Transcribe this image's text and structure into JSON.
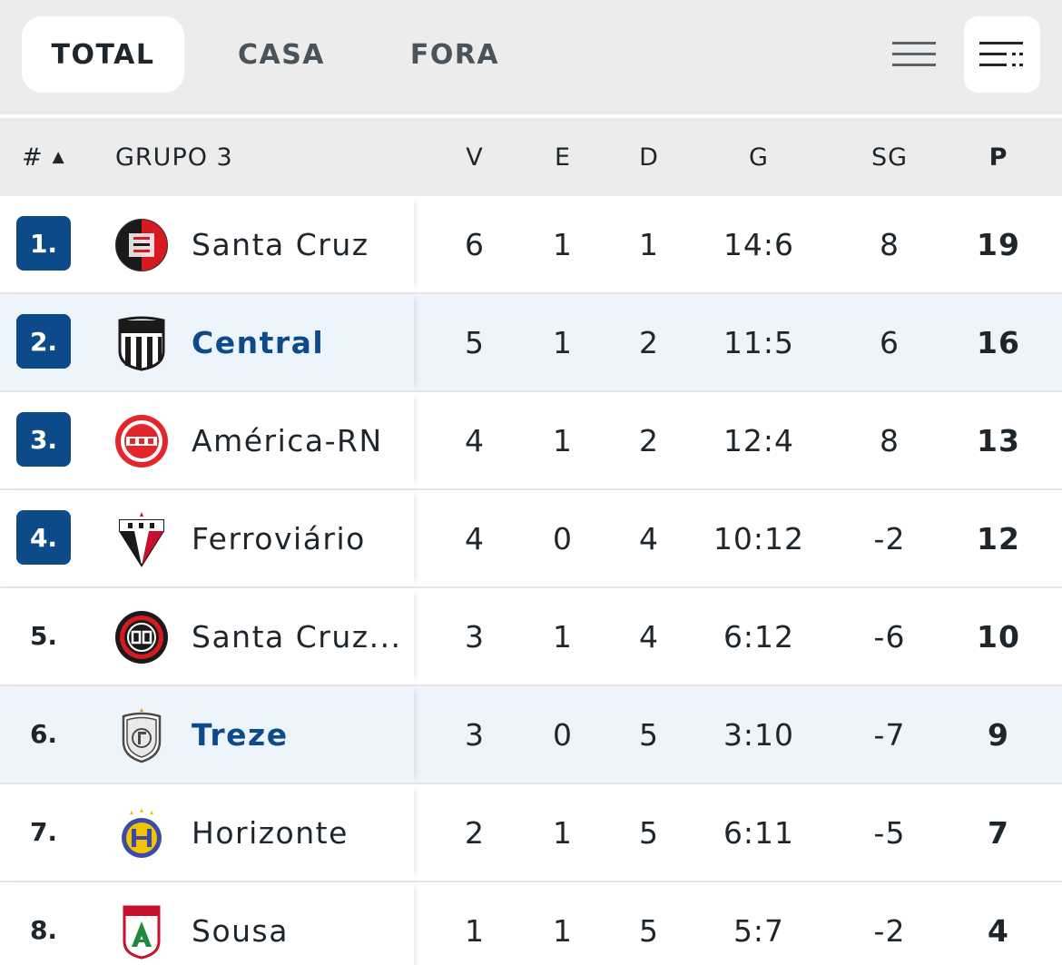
{
  "tabs": {
    "total": "TOTAL",
    "casa": "CASA",
    "fora": "FORA"
  },
  "view_icons": {
    "compact": "compact-list-icon",
    "full": "detailed-list-icon"
  },
  "colors": {
    "badge": "#0d4a8a",
    "highlight_row": "#edf4fc",
    "link_team": "#0d4a8a"
  },
  "header": {
    "num": "#",
    "sort_indicator": "▲",
    "group": "GRUPO 3",
    "v": "V",
    "e": "E",
    "d": "D",
    "g": "G",
    "sg": "SG",
    "p": "P"
  },
  "rows": [
    {
      "pos": "1.",
      "team": "Santa Cruz",
      "v": "6",
      "e": "1",
      "d": "1",
      "g": "14:6",
      "sg": "8",
      "p": "19"
    },
    {
      "pos": "2.",
      "team": "Central",
      "v": "5",
      "e": "1",
      "d": "2",
      "g": "11:5",
      "sg": "6",
      "p": "16"
    },
    {
      "pos": "3.",
      "team": "América-RN",
      "v": "4",
      "e": "1",
      "d": "2",
      "g": "12:4",
      "sg": "8",
      "p": "13"
    },
    {
      "pos": "4.",
      "team": "Ferroviário",
      "v": "4",
      "e": "0",
      "d": "4",
      "g": "10:12",
      "sg": "-2",
      "p": "12"
    },
    {
      "pos": "5.",
      "team": "Santa Cruz...",
      "v": "3",
      "e": "1",
      "d": "4",
      "g": "6:12",
      "sg": "-6",
      "p": "10"
    },
    {
      "pos": "6.",
      "team": "Treze",
      "v": "3",
      "e": "0",
      "d": "5",
      "g": "3:10",
      "sg": "-7",
      "p": "9"
    },
    {
      "pos": "7.",
      "team": "Horizonte",
      "v": "2",
      "e": "1",
      "d": "5",
      "g": "6:11",
      "sg": "-5",
      "p": "7"
    },
    {
      "pos": "8.",
      "team": "Sousa",
      "v": "1",
      "e": "1",
      "d": "5",
      "g": "5:7",
      "sg": "-2",
      "p": "4"
    }
  ]
}
